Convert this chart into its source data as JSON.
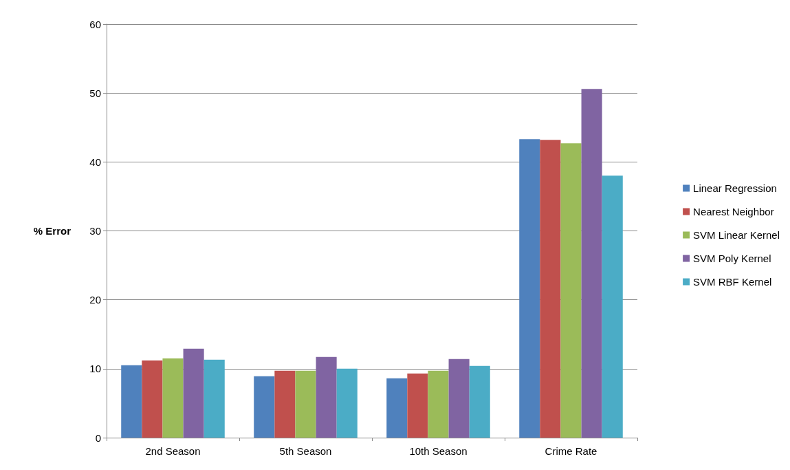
{
  "chart_data": {
    "type": "bar",
    "ylabel": "% Error",
    "categories": [
      "2nd Season",
      "5th Season",
      "10th Season",
      "Crime Rate"
    ],
    "series": [
      {
        "name": "Linear Regression",
        "color": "#4f81bd",
        "values": [
          10.5,
          8.9,
          8.6,
          43.3
        ]
      },
      {
        "name": "Nearest Neighbor",
        "color": "#c0504d",
        "values": [
          11.2,
          9.7,
          9.3,
          43.2
        ]
      },
      {
        "name": "SVM Linear Kernel",
        "color": "#9bbb59",
        "values": [
          11.5,
          9.7,
          9.7,
          42.7
        ]
      },
      {
        "name": "SVM Poly Kernel",
        "color": "#8064a2",
        "values": [
          12.9,
          11.7,
          11.4,
          50.6
        ]
      },
      {
        "name": "SVM RBF Kernel",
        "color": "#4bacc6",
        "values": [
          11.3,
          10.0,
          10.4,
          38.0
        ]
      }
    ],
    "ylim": [
      0,
      60
    ],
    "yticks": [
      0,
      10,
      20,
      30,
      40,
      50,
      60
    ],
    "grid": "y",
    "legend": "right"
  }
}
